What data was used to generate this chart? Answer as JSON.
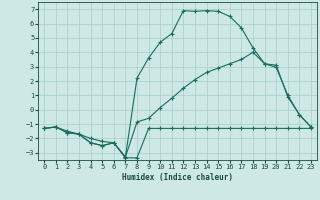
{
  "xlabel": "Humidex (Indice chaleur)",
  "background_color": "#cde8e5",
  "grid_color": "#a8ceca",
  "line_color": "#1a6b60",
  "xlim": [
    -0.5,
    23.5
  ],
  "ylim": [
    -3.5,
    7.5
  ],
  "xticks": [
    0,
    1,
    2,
    3,
    4,
    5,
    6,
    7,
    8,
    9,
    10,
    11,
    12,
    13,
    14,
    15,
    16,
    17,
    18,
    19,
    20,
    21,
    22,
    23
  ],
  "yticks": [
    -3,
    -2,
    -1,
    0,
    1,
    2,
    3,
    4,
    5,
    6,
    7
  ],
  "line_upper_x": [
    0,
    1,
    2,
    3,
    4,
    5,
    6,
    7,
    8,
    9,
    10,
    11,
    12,
    13,
    14,
    15,
    16,
    17,
    18,
    19,
    20,
    21,
    22,
    23
  ],
  "line_upper_y": [
    -1.3,
    -1.2,
    -1.6,
    -1.7,
    -2.3,
    -2.5,
    -2.3,
    -3.3,
    2.2,
    3.6,
    4.7,
    5.3,
    6.9,
    6.85,
    6.9,
    6.85,
    6.5,
    5.7,
    4.3,
    3.2,
    3.1,
    0.9,
    -0.35,
    -1.2
  ],
  "line_mid_x": [
    0,
    1,
    2,
    3,
    4,
    5,
    6,
    7,
    8,
    9,
    10,
    11,
    12,
    13,
    14,
    15,
    16,
    17,
    18,
    19,
    20,
    21,
    22,
    23
  ],
  "line_mid_y": [
    -1.3,
    -1.2,
    -1.6,
    -1.7,
    -2.3,
    -2.5,
    -2.3,
    -3.3,
    -0.85,
    -0.6,
    0.15,
    0.8,
    1.5,
    2.1,
    2.6,
    2.9,
    3.2,
    3.5,
    4.0,
    3.2,
    2.95,
    1.0,
    -0.35,
    -1.2
  ],
  "line_flat_x": [
    0,
    1,
    2,
    3,
    4,
    5,
    6,
    7,
    8,
    9,
    10,
    11,
    12,
    13,
    14,
    15,
    16,
    17,
    18,
    19,
    20,
    21,
    22,
    23
  ],
  "line_flat_y": [
    -1.3,
    -1.2,
    -1.5,
    -1.7,
    -2.0,
    -2.2,
    -2.3,
    -3.35,
    -3.35,
    -1.3,
    -1.3,
    -1.3,
    -1.3,
    -1.3,
    -1.3,
    -1.3,
    -1.3,
    -1.3,
    -1.3,
    -1.3,
    -1.3,
    -1.3,
    -1.3,
    -1.3
  ]
}
